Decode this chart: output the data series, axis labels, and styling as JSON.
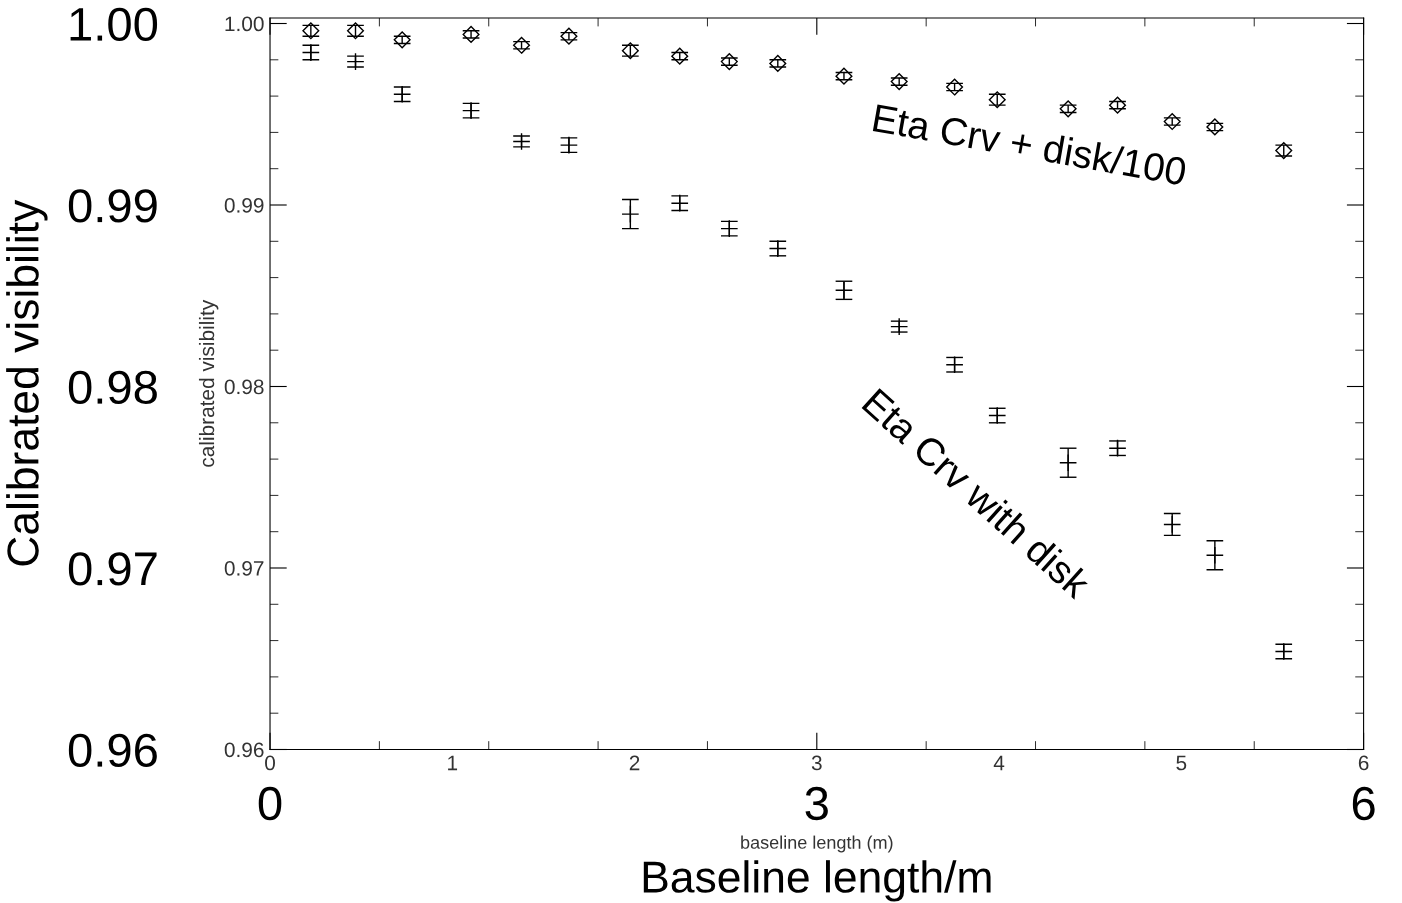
{
  "chart_data": {
    "type": "scatter",
    "xlabel": "Baseline length/m",
    "ylabel": "Calibrated visibility",
    "x2label": "baseline length (m)",
    "y2label": "calibrated visibility",
    "x": [
      0.224,
      0.469,
      0.725,
      1.103,
      1.38,
      1.64,
      1.977,
      2.248,
      2.52,
      2.786,
      3.149,
      3.452,
      3.756,
      3.99,
      4.379,
      4.65,
      4.95,
      5.184,
      5.562
    ],
    "series": [
      {
        "color": "#000000",
        "marker": "diamond",
        "values": [
          0.9996,
          0.9996,
          0.9991,
          0.9994,
          0.9988,
          0.9993,
          0.9985,
          0.9982,
          0.9979,
          0.9978,
          0.9971,
          0.9968,
          0.9965,
          0.9958,
          0.9953,
          0.9955,
          0.9946,
          0.9943,
          0.993
        ],
        "errors": [
          0.0003,
          0.0003,
          0.0002,
          0.0002,
          0.0002,
          0.0002,
          0.0003,
          0.0002,
          0.0002,
          0.0002,
          0.0002,
          0.0002,
          0.0002,
          0.0003,
          0.0002,
          0.0002,
          0.0002,
          0.0002,
          0.0003
        ]
      },
      {
        "color": "#000000",
        "marker": "cross",
        "values": [
          0.9984,
          0.9979,
          0.9961,
          0.9952,
          0.9935,
          0.9933,
          0.9895,
          0.9901,
          0.9887,
          0.9876,
          0.9853,
          0.9833,
          0.9812,
          0.9784,
          0.9758,
          0.9766,
          0.9724,
          0.9707,
          0.9654
        ],
        "errors": [
          0.0004,
          0.0003,
          0.0004,
          0.0004,
          0.0003,
          0.0004,
          0.0008,
          0.0004,
          0.0004,
          0.0004,
          0.0005,
          0.0003,
          0.0004,
          0.0004,
          0.0008,
          0.0004,
          0.0006,
          0.0008,
          0.0004
        ]
      }
    ],
    "annotations": [
      "Eta Crv + disk/100",
      "Eta Crv with disk"
    ],
    "xlim": [
      0,
      6
    ],
    "xticks": [
      0,
      3,
      6
    ],
    "x2lim": [
      0,
      6
    ],
    "x2ticks": [
      0,
      1,
      2,
      3,
      4,
      5,
      6
    ],
    "y2lim": [
      0.96,
      1.0003
    ],
    "ylim": [
      0.96,
      1.0003
    ],
    "yticks": [
      {
        "value": 0.96,
        "label": "0.96"
      },
      {
        "value": 0.97,
        "label": "0.97"
      },
      {
        "value": 0.98,
        "label": "0.98"
      },
      {
        "value": 0.99,
        "label": "0.99"
      },
      {
        "value": 1.0,
        "label": "1.00"
      }
    ],
    "y2ticks": [
      {
        "value": 0.96,
        "label": "0.96"
      },
      {
        "value": 0.97,
        "label": "0.97"
      },
      {
        "value": 0.98,
        "label": "0.98"
      },
      {
        "value": 0.99,
        "label": "0.99"
      },
      {
        "value": 1.0,
        "label": "1.00"
      }
    ],
    "grid": false,
    "legend": false
  }
}
